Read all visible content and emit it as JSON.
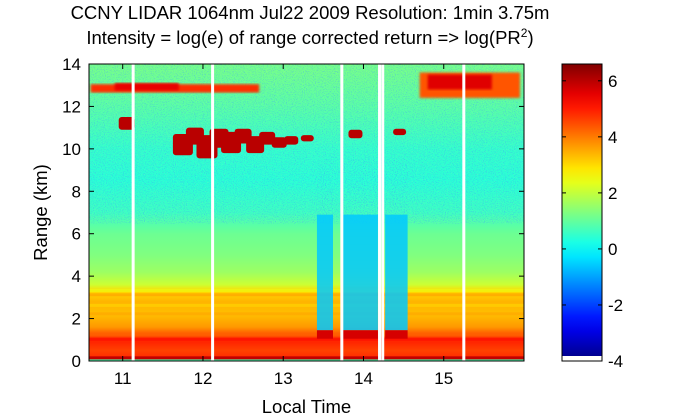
{
  "figure": {
    "title_line1": "CCNY LIDAR 1064nm Jul22 2009 Resolution: 1min 3.75m",
    "title_line2_main": "Intensity = log(e) of range corrected return => log(PR",
    "title_line2_sup": "2",
    "title_line2_end": ")"
  },
  "chart_data": {
    "type": "heatmap",
    "title": "CCNY LIDAR 1064nm Jul22 2009 Resolution: 1min 3.75m",
    "subtitle": "Intensity = log(e) of range corrected return => log(PR^2)",
    "xlabel": "Local Time",
    "ylabel": "Range (km)",
    "xlim": [
      10.58,
      16.0
    ],
    "ylim": [
      0,
      14
    ],
    "xticks": [
      11,
      12,
      13,
      14,
      15
    ],
    "yticks": [
      0,
      2,
      4,
      6,
      8,
      10,
      12,
      14
    ],
    "colorbar": {
      "range": [
        -4,
        6.6
      ],
      "ticks": [
        -4,
        -2,
        0,
        2,
        4,
        6
      ],
      "colormap": "jet"
    },
    "data_gaps_local_time": [
      11.13,
      12.12,
      13.73,
      14.2,
      14.24,
      15.25
    ],
    "layers": [
      {
        "feature": "surface layer",
        "range_km": [
          0.2,
          1.4
        ],
        "value": 4.5
      },
      {
        "feature": "boundary layer",
        "range_km": [
          1.4,
          3.5
        ],
        "value": 2.6
      },
      {
        "feature": "aerosol",
        "range_km": [
          3.5,
          6.0
        ],
        "value": 1.3
      },
      {
        "feature": "mid-level cloud",
        "time": [
          11.7,
          13.0
        ],
        "range_km": [
          9.7,
          11.2
        ],
        "value": 5.8
      },
      {
        "feature": "high cloud",
        "time": [
          10.58,
          12.5
        ],
        "range_km": [
          12.6,
          13.1
        ],
        "value": 4.8
      },
      {
        "feature": "high cloud",
        "time": [
          14.7,
          15.9
        ],
        "range_km": [
          12.3,
          13.7
        ],
        "value": 4.6
      }
    ]
  }
}
